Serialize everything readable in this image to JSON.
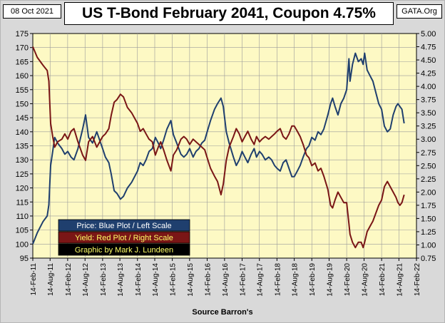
{
  "header": {
    "date": "08 Oct 2021",
    "site": "GATA.Org"
  },
  "colors": {
    "price": "#1f3f6e",
    "yield": "#7a1616",
    "plot_bg": "#fdf9c4",
    "frame_bg": "#d9d9d9"
  },
  "chart_data": {
    "type": "line",
    "title": "US T-Bond February 2041, Coupon 4.75%",
    "xlabel": "Source Barron's",
    "x_ticks": [
      "14-Feb-11",
      "14-Aug-11",
      "14-Feb-12",
      "14-Aug-12",
      "14-Feb-13",
      "14-Aug-13",
      "14-Feb-14",
      "14-Aug-14",
      "14-Feb-15",
      "14-Aug-15",
      "14-Feb-16",
      "14-Aug-16",
      "14-Feb-17",
      "14-Aug-17",
      "14-Feb-18",
      "14-Aug-18",
      "14-Feb-19",
      "14-Aug-19",
      "14-Feb-20",
      "14-Aug-20",
      "14-Feb-21",
      "14-Aug-21",
      "14-Feb-22"
    ],
    "y_left": {
      "min": 95,
      "max": 175,
      "step": 5,
      "ticks": [
        "95",
        "100",
        "105",
        "110",
        "115",
        "120",
        "125",
        "130",
        "135",
        "140",
        "145",
        "150",
        "155",
        "160",
        "165",
        "170",
        "175"
      ]
    },
    "y_right": {
      "min": 0.75,
      "max": 5.0,
      "step": 0.25,
      "ticks": [
        "0.75",
        "1.00",
        "1.25",
        "1.50",
        "1.75",
        "2.00",
        "2.25",
        "2.50",
        "2.75",
        "3.00",
        "3.25",
        "3.50",
        "3.75",
        "4.00",
        "4.25",
        "4.50",
        "4.75",
        "5.00"
      ]
    },
    "grid": true,
    "legend": [
      {
        "label": "Price:  Blue Plot / Left Scale",
        "text_color": "#ffffff",
        "box_color": "#1f3f6e"
      },
      {
        "label": "Yield:  Red Plot / Right Scale",
        "text_color": "#ffff66",
        "box_color": "#7a1616"
      },
      {
        "label": "Graphic by Mark J. Lundeen",
        "text_color": "#ffff66",
        "box_color": "#000000"
      }
    ],
    "series": [
      {
        "name": "Price",
        "axis": "left",
        "x": [
          "2011-02-14",
          "2011-04-01",
          "2011-06-01",
          "2011-07-15",
          "2011-08-01",
          "2011-08-20",
          "2011-09-10",
          "2011-10-01",
          "2011-11-01",
          "2011-12-15",
          "2012-01-15",
          "2012-02-15",
          "2012-03-20",
          "2012-04-20",
          "2012-06-01",
          "2012-07-20",
          "2012-08-20",
          "2012-09-20",
          "2012-11-01",
          "2012-12-15",
          "2013-02-14",
          "2013-03-15",
          "2013-04-20",
          "2013-05-15",
          "2013-06-15",
          "2013-07-15",
          "2013-08-20",
          "2013-09-20",
          "2013-11-01",
          "2013-12-15",
          "2014-01-15",
          "2014-02-14",
          "2014-03-15",
          "2014-04-15",
          "2014-05-15",
          "2014-06-15",
          "2014-07-20",
          "2014-08-20",
          "2014-09-20",
          "2014-10-15",
          "2014-11-15",
          "2014-12-20",
          "2015-01-30",
          "2015-02-25",
          "2015-04-01",
          "2015-05-15",
          "2015-06-15",
          "2015-07-15",
          "2015-08-15",
          "2015-09-20",
          "2015-10-20",
          "2015-11-20",
          "2015-12-20",
          "2016-01-20",
          "2016-02-14",
          "2016-03-20",
          "2016-05-01",
          "2016-06-01",
          "2016-07-08",
          "2016-08-01",
          "2016-09-01",
          "2016-10-01",
          "2016-11-15",
          "2016-12-15",
          "2017-01-15",
          "2017-02-14",
          "2017-03-15",
          "2017-04-15",
          "2017-05-20",
          "2017-06-20",
          "2017-07-15",
          "2017-08-15",
          "2017-09-10",
          "2017-10-15",
          "2017-11-20",
          "2017-12-20",
          "2018-01-20",
          "2018-02-14",
          "2018-03-20",
          "2018-04-20",
          "2018-05-20",
          "2018-06-20",
          "2018-07-20",
          "2018-08-14",
          "2018-09-15",
          "2018-10-15",
          "2018-11-15",
          "2018-12-20",
          "2019-01-15",
          "2019-02-14",
          "2019-03-20",
          "2019-04-20",
          "2019-05-20",
          "2019-06-20",
          "2019-08-01",
          "2019-08-30",
          "2019-09-20",
          "2019-10-15",
          "2019-11-15",
          "2019-12-15",
          "2020-01-15",
          "2020-02-14",
          "2020-03-09",
          "2020-03-20",
          "2020-04-15",
          "2020-05-15",
          "2020-06-15",
          "2020-07-15",
          "2020-08-04",
          "2020-08-20",
          "2020-09-15",
          "2020-10-15",
          "2020-11-15",
          "2020-12-15",
          "2021-01-15",
          "2021-02-14",
          "2021-03-15",
          "2021-04-15",
          "2021-05-15",
          "2021-06-15",
          "2021-07-15",
          "2021-08-04",
          "2021-08-25",
          "2021-09-15",
          "2021-10-08"
        ],
        "values": [
          100,
          104,
          108,
          110,
          114,
          128,
          133,
          138,
          136,
          134,
          132,
          133,
          131,
          130,
          134,
          141,
          146,
          138,
          136,
          140,
          134,
          131,
          129,
          125,
          119,
          118,
          116,
          117,
          120,
          122,
          124,
          126,
          129,
          128,
          130,
          133,
          134,
          138,
          136,
          134,
          137,
          141,
          144,
          139,
          136,
          132,
          131,
          132,
          134,
          131,
          133,
          134,
          136,
          137,
          140,
          144,
          148,
          150,
          152,
          149,
          140,
          136,
          131,
          128,
          130,
          133,
          131,
          129,
          132,
          134,
          131,
          133,
          132,
          130,
          131,
          130,
          128,
          127,
          126,
          129,
          130,
          127,
          124,
          124,
          126,
          128,
          131,
          134,
          135,
          138,
          137,
          140,
          139,
          141,
          146,
          150,
          152,
          149,
          146,
          150,
          152,
          155,
          166,
          158,
          164,
          168,
          165,
          166,
          164,
          168,
          162,
          160,
          158,
          154,
          150,
          148,
          142,
          140,
          141,
          146,
          149,
          150,
          149,
          148,
          143
        ]
      },
      {
        "name": "Yield",
        "axis": "right",
        "x": [
          "2011-02-14",
          "2011-04-01",
          "2011-06-01",
          "2011-07-15",
          "2011-08-01",
          "2011-08-20",
          "2011-09-10",
          "2011-10-01",
          "2011-11-01",
          "2011-12-15",
          "2012-01-15",
          "2012-02-15",
          "2012-03-20",
          "2012-04-20",
          "2012-06-01",
          "2012-07-20",
          "2012-08-20",
          "2012-09-20",
          "2012-11-01",
          "2012-12-15",
          "2013-02-14",
          "2013-03-15",
          "2013-04-20",
          "2013-05-15",
          "2013-06-15",
          "2013-07-15",
          "2013-08-20",
          "2013-09-20",
          "2013-11-01",
          "2013-12-15",
          "2014-01-15",
          "2014-02-14",
          "2014-03-15",
          "2014-04-15",
          "2014-05-15",
          "2014-06-15",
          "2014-07-20",
          "2014-08-20",
          "2014-09-20",
          "2014-10-15",
          "2014-11-15",
          "2014-12-20",
          "2015-01-30",
          "2015-02-25",
          "2015-04-01",
          "2015-05-15",
          "2015-06-15",
          "2015-07-15",
          "2015-08-15",
          "2015-09-20",
          "2015-10-20",
          "2015-11-20",
          "2015-12-20",
          "2016-01-20",
          "2016-02-14",
          "2016-03-20",
          "2016-05-01",
          "2016-06-01",
          "2016-07-08",
          "2016-08-01",
          "2016-09-01",
          "2016-10-01",
          "2016-11-15",
          "2016-12-15",
          "2017-01-15",
          "2017-02-14",
          "2017-03-15",
          "2017-04-15",
          "2017-05-20",
          "2017-06-20",
          "2017-07-15",
          "2017-08-15",
          "2017-09-10",
          "2017-10-15",
          "2017-11-20",
          "2017-12-20",
          "2018-01-20",
          "2018-02-14",
          "2018-03-20",
          "2018-04-20",
          "2018-05-20",
          "2018-06-20",
          "2018-07-20",
          "2018-08-14",
          "2018-09-15",
          "2018-10-15",
          "2018-11-15",
          "2018-12-20",
          "2019-01-15",
          "2019-02-14",
          "2019-03-20",
          "2019-04-20",
          "2019-05-20",
          "2019-06-20",
          "2019-08-01",
          "2019-08-30",
          "2019-09-20",
          "2019-10-15",
          "2019-11-15",
          "2019-12-15",
          "2020-01-15",
          "2020-02-14",
          "2020-03-09",
          "2020-03-20",
          "2020-04-15",
          "2020-05-15",
          "2020-06-15",
          "2020-07-15",
          "2020-08-04",
          "2020-08-20",
          "2020-09-15",
          "2020-10-15",
          "2020-11-15",
          "2020-12-15",
          "2021-01-15",
          "2021-02-14",
          "2021-03-15",
          "2021-04-15",
          "2021-05-15",
          "2021-06-15",
          "2021-07-15",
          "2021-08-04",
          "2021-08-25",
          "2021-09-15",
          "2021-10-08"
        ],
        "values": [
          4.75,
          4.55,
          4.4,
          4.3,
          4.1,
          3.3,
          3.05,
          2.85,
          2.95,
          3.0,
          3.1,
          3.0,
          3.15,
          3.2,
          2.95,
          2.7,
          2.6,
          2.95,
          3.05,
          2.85,
          3.05,
          3.1,
          3.2,
          3.45,
          3.7,
          3.75,
          3.85,
          3.8,
          3.6,
          3.5,
          3.4,
          3.3,
          3.15,
          3.2,
          3.1,
          3.0,
          2.95,
          2.7,
          2.85,
          2.95,
          2.8,
          2.6,
          2.4,
          2.7,
          2.8,
          3.0,
          3.05,
          3.0,
          2.9,
          3.0,
          2.95,
          2.9,
          2.85,
          2.8,
          2.65,
          2.45,
          2.3,
          2.2,
          1.95,
          2.15,
          2.6,
          2.85,
          3.05,
          3.2,
          3.1,
          2.95,
          3.05,
          3.15,
          3.0,
          2.9,
          3.05,
          2.95,
          3.0,
          3.05,
          3.0,
          3.05,
          3.1,
          3.15,
          3.2,
          3.05,
          3.0,
          3.1,
          3.25,
          3.25,
          3.15,
          3.05,
          2.9,
          2.7,
          2.65,
          2.5,
          2.55,
          2.4,
          2.45,
          2.3,
          2.05,
          1.75,
          1.7,
          1.85,
          2.0,
          1.9,
          1.8,
          1.8,
          1.4,
          1.2,
          1.05,
          0.95,
          1.05,
          1.05,
          0.95,
          1.05,
          1.25,
          1.35,
          1.45,
          1.6,
          1.75,
          1.85,
          2.1,
          2.2,
          2.1,
          2.0,
          1.9,
          1.8,
          1.75,
          1.8,
          1.95
        ]
      }
    ]
  },
  "footer": {
    "source": "Source Barron's"
  }
}
